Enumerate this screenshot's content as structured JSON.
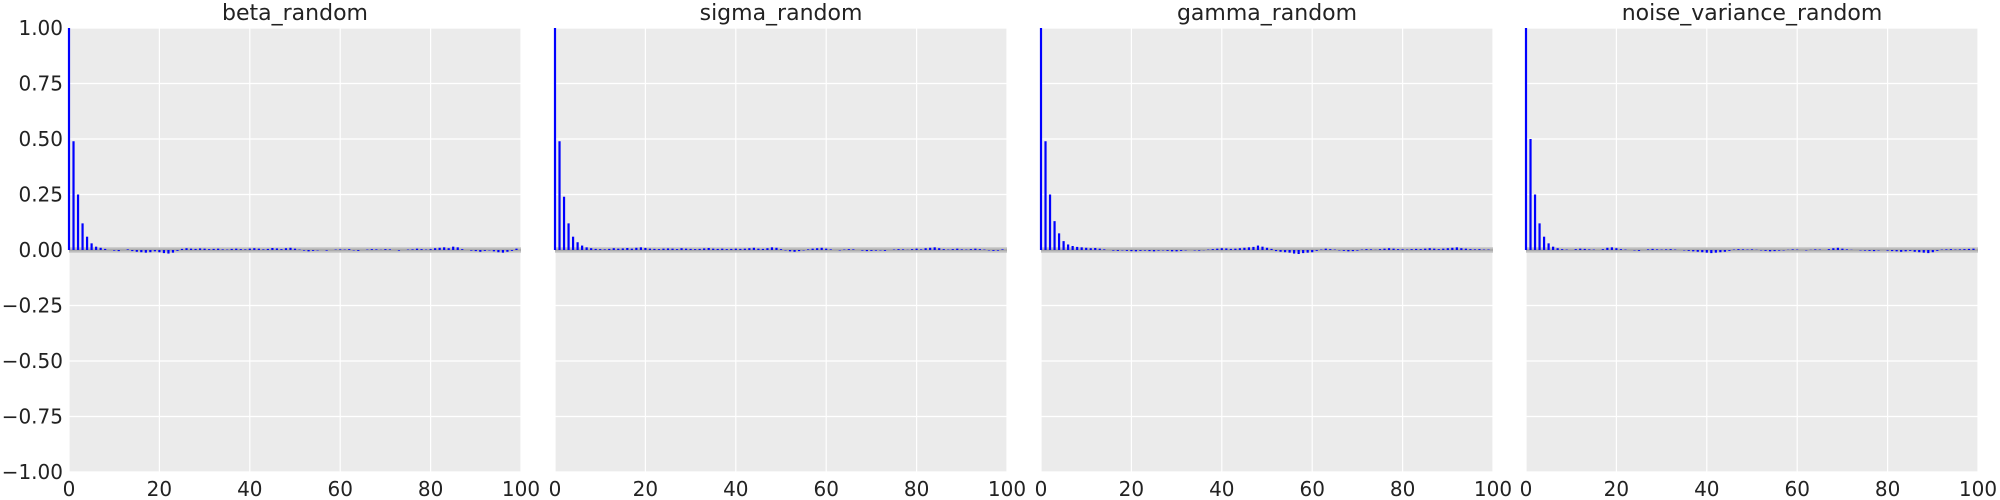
{
  "figure": {
    "layout": "1x4 grid of autocorrelation panels sharing the y axis",
    "panel_background": "#ebebeb",
    "grid_color": "#ffffff",
    "bar_color": "#0000ff",
    "confidence_band_color": "#bfbfbf"
  },
  "chart_data": [
    {
      "type": "bar",
      "title": "beta_random",
      "xlabel": "",
      "ylabel": "",
      "xlim": [
        0,
        100
      ],
      "ylim": [
        -1.0,
        1.0
      ],
      "x_ticks": [
        "0",
        "20",
        "40",
        "60",
        "80",
        "100"
      ],
      "y_ticks": [
        "1.00",
        "0.75",
        "0.50",
        "0.25",
        "0.00",
        "−0.25",
        "−0.50",
        "−0.75",
        "−1.00"
      ],
      "grid": true,
      "confidence_band": [
        -0.012,
        0.012
      ],
      "x": [
        0,
        1,
        2,
        3,
        4,
        5,
        6,
        7,
        8,
        9,
        10,
        11,
        12,
        13,
        14,
        15,
        16,
        17,
        18,
        19,
        20,
        21,
        22,
        23,
        24,
        25,
        26,
        27,
        28,
        29,
        30,
        31,
        32,
        33,
        34,
        35,
        36,
        37,
        38,
        39,
        40,
        41,
        42,
        43,
        44,
        45,
        46,
        47,
        48,
        49,
        50,
        51,
        52,
        53,
        54,
        55,
        56,
        57,
        58,
        59,
        60,
        61,
        62,
        63,
        64,
        65,
        66,
        67,
        68,
        69,
        70,
        71,
        72,
        73,
        74,
        75,
        76,
        77,
        78,
        79,
        80,
        81,
        82,
        83,
        84,
        85,
        86,
        87,
        88,
        89,
        90,
        91,
        92,
        93,
        94,
        95,
        96,
        97,
        98,
        99
      ],
      "values": [
        1.0,
        0.49,
        0.25,
        0.12,
        0.06,
        0.03,
        0.015,
        0.01,
        0.005,
        0.0,
        -0.003,
        -0.005,
        0.0,
        0.003,
        -0.005,
        -0.008,
        -0.01,
        -0.012,
        -0.01,
        -0.006,
        -0.01,
        -0.014,
        -0.016,
        -0.012,
        -0.004,
        0.005,
        0.008,
        0.006,
        0.005,
        0.007,
        0.006,
        0.004,
        0.005,
        0.006,
        0.003,
        0.002,
        0.005,
        0.006,
        0.004,
        0.003,
        0.006,
        0.008,
        0.006,
        0.003,
        0.005,
        0.009,
        0.007,
        0.004,
        0.008,
        0.01,
        0.006,
        0.002,
        -0.003,
        -0.006,
        -0.004,
        -0.002,
        0.0,
        -0.003,
        0.0,
        0.002,
        0.003,
        0.002,
        0.004,
        -0.002,
        -0.004,
        0.0,
        0.002,
        0.004,
        0.003,
        0.001,
        0.004,
        0.003,
        0.0,
        -0.003,
        0.0,
        0.002,
        0.003,
        0.006,
        0.004,
        0.002,
        0.004,
        0.008,
        0.01,
        0.012,
        0.008,
        0.015,
        0.012,
        0.004,
        0.0,
        -0.003,
        -0.005,
        -0.008,
        -0.004,
        -0.002,
        -0.006,
        -0.01,
        -0.012,
        -0.008,
        -0.004,
        0.006
      ]
    },
    {
      "type": "bar",
      "title": "sigma_random",
      "xlabel": "",
      "ylabel": "",
      "xlim": [
        0,
        100
      ],
      "ylim": [
        -1.0,
        1.0
      ],
      "x_ticks": [
        "0",
        "20",
        "40",
        "60",
        "80",
        "100"
      ],
      "grid": true,
      "confidence_band": [
        -0.012,
        0.012
      ],
      "x": [
        0,
        1,
        2,
        3,
        4,
        5,
        6,
        7,
        8,
        9,
        10,
        11,
        12,
        13,
        14,
        15,
        16,
        17,
        18,
        19,
        20,
        21,
        22,
        23,
        24,
        25,
        26,
        27,
        28,
        29,
        30,
        31,
        32,
        33,
        34,
        35,
        36,
        37,
        38,
        39,
        40,
        41,
        42,
        43,
        44,
        45,
        46,
        47,
        48,
        49,
        50,
        51,
        52,
        53,
        54,
        55,
        56,
        57,
        58,
        59,
        60,
        61,
        62,
        63,
        64,
        65,
        66,
        67,
        68,
        69,
        70,
        71,
        72,
        73,
        74,
        75,
        76,
        77,
        78,
        79,
        80,
        81,
        82,
        83,
        84,
        85,
        86,
        87,
        88,
        89,
        90,
        91,
        92,
        93,
        94,
        95,
        96,
        97,
        98,
        99
      ],
      "values": [
        1.0,
        0.49,
        0.24,
        0.12,
        0.06,
        0.035,
        0.02,
        0.012,
        0.008,
        0.005,
        0.004,
        0.003,
        0.005,
        0.008,
        0.006,
        0.007,
        0.009,
        0.006,
        0.01,
        0.012,
        0.009,
        0.006,
        0.005,
        0.004,
        0.006,
        0.007,
        0.006,
        0.004,
        0.008,
        0.006,
        0.005,
        0.004,
        0.005,
        0.007,
        0.009,
        0.006,
        0.005,
        0.006,
        0.004,
        0.005,
        0.006,
        0.005,
        0.006,
        0.008,
        0.01,
        0.006,
        0.005,
        0.008,
        0.012,
        0.01,
        0.004,
        -0.002,
        -0.006,
        -0.008,
        -0.005,
        -0.002,
        0.003,
        0.006,
        0.008,
        0.01,
        0.006,
        0.003,
        0.0,
        -0.002,
        0.002,
        0.004,
        0.003,
        0.0,
        -0.003,
        -0.005,
        -0.004,
        -0.003,
        -0.002,
        -0.004,
        0.0,
        0.002,
        0.004,
        0.003,
        0.001,
        0.004,
        0.006,
        0.003,
        0.008,
        0.01,
        0.012,
        0.008,
        0.004,
        0.002,
        0.004,
        0.006,
        0.003,
        0.002,
        0.004,
        0.006,
        0.004,
        0.002,
        -0.002,
        -0.004,
        -0.003,
        0.003
      ]
    },
    {
      "type": "bar",
      "title": "gamma_random",
      "xlabel": "",
      "ylabel": "",
      "xlim": [
        0,
        100
      ],
      "ylim": [
        -1.0,
        1.0
      ],
      "x_ticks": [
        "0",
        "20",
        "40",
        "60",
        "80",
        "100"
      ],
      "grid": true,
      "confidence_band": [
        -0.012,
        0.012
      ],
      "x": [
        0,
        1,
        2,
        3,
        4,
        5,
        6,
        7,
        8,
        9,
        10,
        11,
        12,
        13,
        14,
        15,
        16,
        17,
        18,
        19,
        20,
        21,
        22,
        23,
        24,
        25,
        26,
        27,
        28,
        29,
        30,
        31,
        32,
        33,
        34,
        35,
        36,
        37,
        38,
        39,
        40,
        41,
        42,
        43,
        44,
        45,
        46,
        47,
        48,
        49,
        50,
        51,
        52,
        53,
        54,
        55,
        56,
        57,
        58,
        59,
        60,
        61,
        62,
        63,
        64,
        65,
        66,
        67,
        68,
        69,
        70,
        71,
        72,
        73,
        74,
        75,
        76,
        77,
        78,
        79,
        80,
        81,
        82,
        83,
        84,
        85,
        86,
        87,
        88,
        89,
        90,
        91,
        92,
        93,
        94,
        95,
        96,
        97,
        98,
        99
      ],
      "values": [
        1.0,
        0.49,
        0.25,
        0.13,
        0.075,
        0.04,
        0.025,
        0.018,
        0.014,
        0.012,
        0.01,
        0.008,
        0.009,
        0.006,
        0.003,
        0.0,
        -0.003,
        -0.004,
        -0.002,
        -0.004,
        -0.005,
        -0.006,
        -0.004,
        -0.003,
        -0.005,
        -0.006,
        -0.003,
        -0.002,
        -0.004,
        -0.006,
        -0.006,
        -0.004,
        -0.002,
        0.0,
        -0.002,
        -0.003,
        -0.001,
        0.002,
        0.004,
        0.006,
        0.008,
        0.007,
        0.005,
        0.006,
        0.008,
        0.01,
        0.012,
        0.014,
        0.02,
        0.015,
        0.01,
        0.005,
        -0.005,
        -0.008,
        -0.01,
        -0.012,
        -0.016,
        -0.018,
        -0.014,
        -0.012,
        -0.01,
        -0.004,
        0.002,
        0.006,
        0.004,
        0.002,
        -0.002,
        -0.004,
        -0.006,
        -0.005,
        -0.003,
        0.002,
        0.004,
        0.003,
        0.001,
        0.004,
        0.006,
        0.008,
        0.006,
        0.004,
        0.003,
        0.002,
        0.004,
        0.005,
        0.004,
        0.006,
        0.008,
        0.006,
        0.004,
        0.006,
        0.008,
        0.01,
        0.012,
        0.008,
        0.006,
        0.004,
        0.003,
        0.004,
        0.002,
        0.002
      ]
    },
    {
      "type": "bar",
      "title": "noise_variance_random",
      "xlabel": "",
      "ylabel": "",
      "xlim": [
        0,
        100
      ],
      "ylim": [
        -1.0,
        1.0
      ],
      "x_ticks": [
        "0",
        "20",
        "40",
        "60",
        "80",
        "100"
      ],
      "grid": true,
      "confidence_band": [
        -0.012,
        0.012
      ],
      "x": [
        0,
        1,
        2,
        3,
        4,
        5,
        6,
        7,
        8,
        9,
        10,
        11,
        12,
        13,
        14,
        15,
        16,
        17,
        18,
        19,
        20,
        21,
        22,
        23,
        24,
        25,
        26,
        27,
        28,
        29,
        30,
        31,
        32,
        33,
        34,
        35,
        36,
        37,
        38,
        39,
        40,
        41,
        42,
        43,
        44,
        45,
        46,
        47,
        48,
        49,
        50,
        51,
        52,
        53,
        54,
        55,
        56,
        57,
        58,
        59,
        60,
        61,
        62,
        63,
        64,
        65,
        66,
        67,
        68,
        69,
        70,
        71,
        72,
        73,
        74,
        75,
        76,
        77,
        78,
        79,
        80,
        81,
        82,
        83,
        84,
        85,
        86,
        87,
        88,
        89,
        90,
        91,
        92,
        93,
        94,
        95,
        96,
        97,
        98,
        99
      ],
      "values": [
        1.0,
        0.5,
        0.25,
        0.12,
        0.06,
        0.03,
        0.015,
        0.008,
        0.004,
        0.002,
        0.0,
        0.004,
        0.006,
        0.005,
        0.003,
        0.002,
        0.0,
        0.004,
        0.01,
        0.012,
        0.008,
        0.004,
        0.002,
        0.0,
        -0.002,
        -0.004,
        0.0,
        0.003,
        0.005,
        0.003,
        0.002,
        0.003,
        0.004,
        0.002,
        0.0,
        -0.002,
        -0.004,
        -0.006,
        -0.008,
        -0.01,
        -0.012,
        -0.014,
        -0.012,
        -0.01,
        -0.008,
        -0.004,
        0.002,
        0.004,
        0.003,
        0.002,
        0.003,
        0.001,
        -0.002,
        -0.004,
        -0.006,
        -0.005,
        -0.003,
        -0.002,
        0.001,
        0.003,
        0.002,
        0.0,
        -0.002,
        0.001,
        0.003,
        0.002,
        0.0,
        0.004,
        0.008,
        0.01,
        0.006,
        0.003,
        0.001,
        0.0,
        -0.002,
        -0.003,
        -0.004,
        -0.005,
        -0.002,
        0.0,
        -0.003,
        -0.005,
        -0.006,
        -0.008,
        -0.006,
        -0.004,
        -0.008,
        -0.01,
        -0.012,
        -0.014,
        -0.01,
        -0.004,
        0.002,
        0.003,
        0.004,
        0.002,
        0.003,
        0.004,
        0.005,
        0.006
      ]
    }
  ]
}
